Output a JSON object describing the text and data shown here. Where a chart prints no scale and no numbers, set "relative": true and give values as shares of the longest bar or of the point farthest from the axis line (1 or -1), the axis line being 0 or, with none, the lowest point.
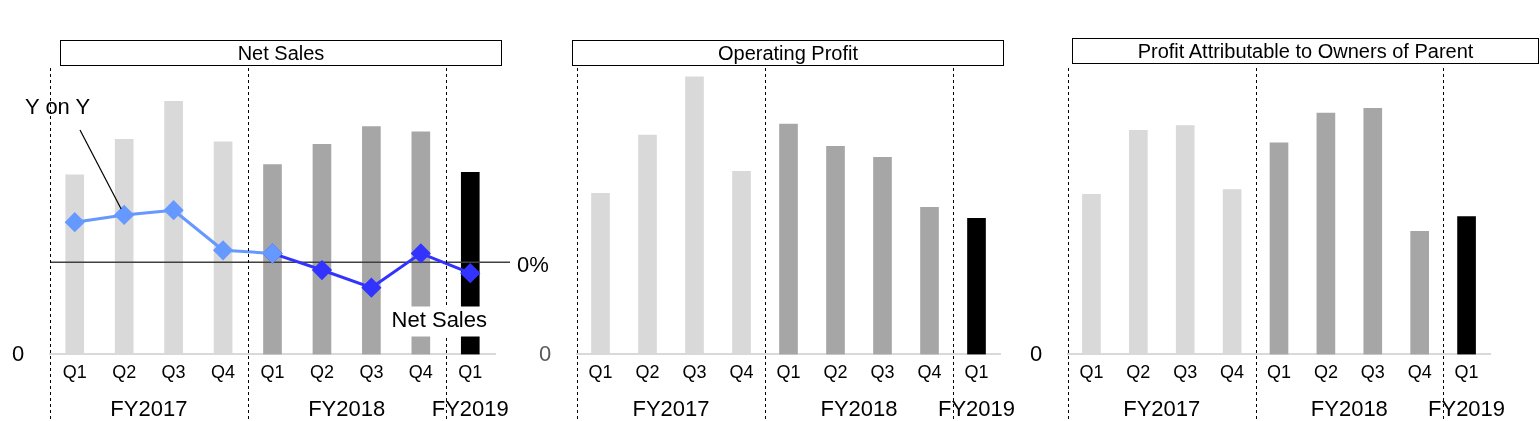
{
  "chart_data": [
    {
      "type": "bar",
      "title": "Net Sales",
      "relative": true,
      "marker": "diamond",
      "categories": [
        "Q1",
        "Q2",
        "Q3",
        "Q4",
        "Q1",
        "Q2",
        "Q3",
        "Q4",
        "Q1"
      ],
      "series": [
        {
          "name": "Net Sales",
          "colors": [
            "#d9d9d9",
            "#d9d9d9",
            "#d9d9d9",
            "#d9d9d9",
            "#a6a6a6",
            "#a6a6a6",
            "#a6a6a6",
            "#a6a6a6",
            "#000000"
          ],
          "values": [
            0.71,
            0.85,
            1,
            0.84,
            0.75,
            0.83,
            0.9,
            0.88,
            0.72
          ]
        },
        {
          "name": "Y on Y",
          "type": "line",
          "axis": "y2",
          "color": "#6699ff",
          "values": [
            0.77,
            0.91,
            1,
            0.23,
            0.17,
            null,
            null,
            null,
            null
          ]
        },
        {
          "type": "line",
          "axis": "y2",
          "color": "#3333ff",
          "values": [
            null,
            null,
            null,
            null,
            0.17,
            -0.15,
            -0.49,
            0.17,
            -0.21
          ]
        }
      ],
      "ref_lines": [
        {
          "axis": "y2",
          "value": 0,
          "label": "0%"
        }
      ],
      "annotations": [
        "FY2017",
        "FY2018",
        "FY2019",
        "0"
      ]
    },
    {
      "type": "bar",
      "title": "Operating Profit",
      "relative": true,
      "categories": [
        "Q1",
        "Q2",
        "Q3",
        "Q4",
        "Q1",
        "Q2",
        "Q3",
        "Q4",
        "Q1"
      ],
      "series": [
        {
          "colors": [
            "#d9d9d9",
            "#d9d9d9",
            "#d9d9d9",
            "#d9d9d9",
            "#a6a6a6",
            "#a6a6a6",
            "#a6a6a6",
            "#a6a6a6",
            "#000000"
          ],
          "values": [
            0.58,
            0.79,
            1,
            0.66,
            0.83,
            0.75,
            0.71,
            0.53,
            0.49
          ]
        }
      ],
      "annotations": [
        "FY2017",
        "FY2018",
        "FY2019",
        "0"
      ]
    },
    {
      "type": "bar",
      "title": "Profit Attributable to Owners of Parent",
      "relative": true,
      "categories": [
        "Q1",
        "Q2",
        "Q3",
        "Q4",
        "Q1",
        "Q2",
        "Q3",
        "Q4",
        "Q1"
      ],
      "series": [
        {
          "colors": [
            "#d9d9d9",
            "#d9d9d9",
            "#d9d9d9",
            "#d9d9d9",
            "#a6a6a6",
            "#a6a6a6",
            "#a6a6a6",
            "#a6a6a6",
            "#000000"
          ],
          "values": [
            0.65,
            0.91,
            0.93,
            0.67,
            0.86,
            0.98,
            1,
            0.5,
            0.56
          ]
        }
      ],
      "annotations": [
        "FY2017",
        "FY2018",
        "FY2019",
        "0"
      ]
    }
  ]
}
